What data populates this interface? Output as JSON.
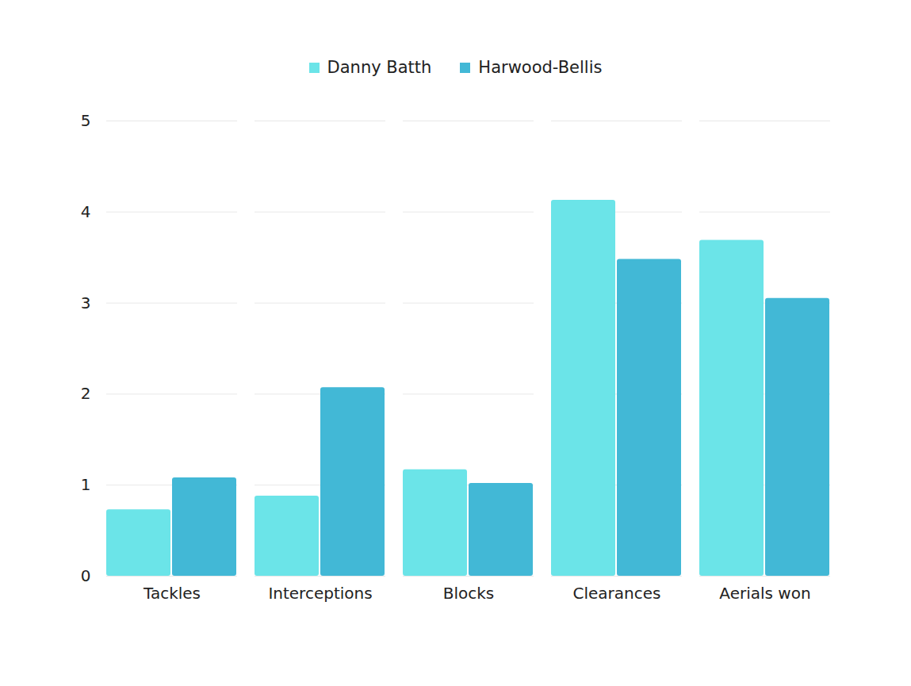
{
  "chart_data": {
    "type": "bar",
    "categories": [
      "Tackles",
      "Interceptions",
      "Blocks",
      "Clearances",
      "Aerials won"
    ],
    "series": [
      {
        "name": "Danny Batth",
        "color": "#6be4e8",
        "values": [
          0.73,
          0.88,
          1.17,
          4.13,
          3.69
        ]
      },
      {
        "name": "Harwood-Bellis",
        "color": "#42b8d6",
        "values": [
          1.08,
          2.07,
          1.02,
          3.48,
          3.05
        ]
      }
    ],
    "ylim": [
      0,
      5
    ],
    "yticks": [
      0,
      1,
      2,
      3,
      4,
      5
    ],
    "grid": true,
    "legend": "top"
  }
}
